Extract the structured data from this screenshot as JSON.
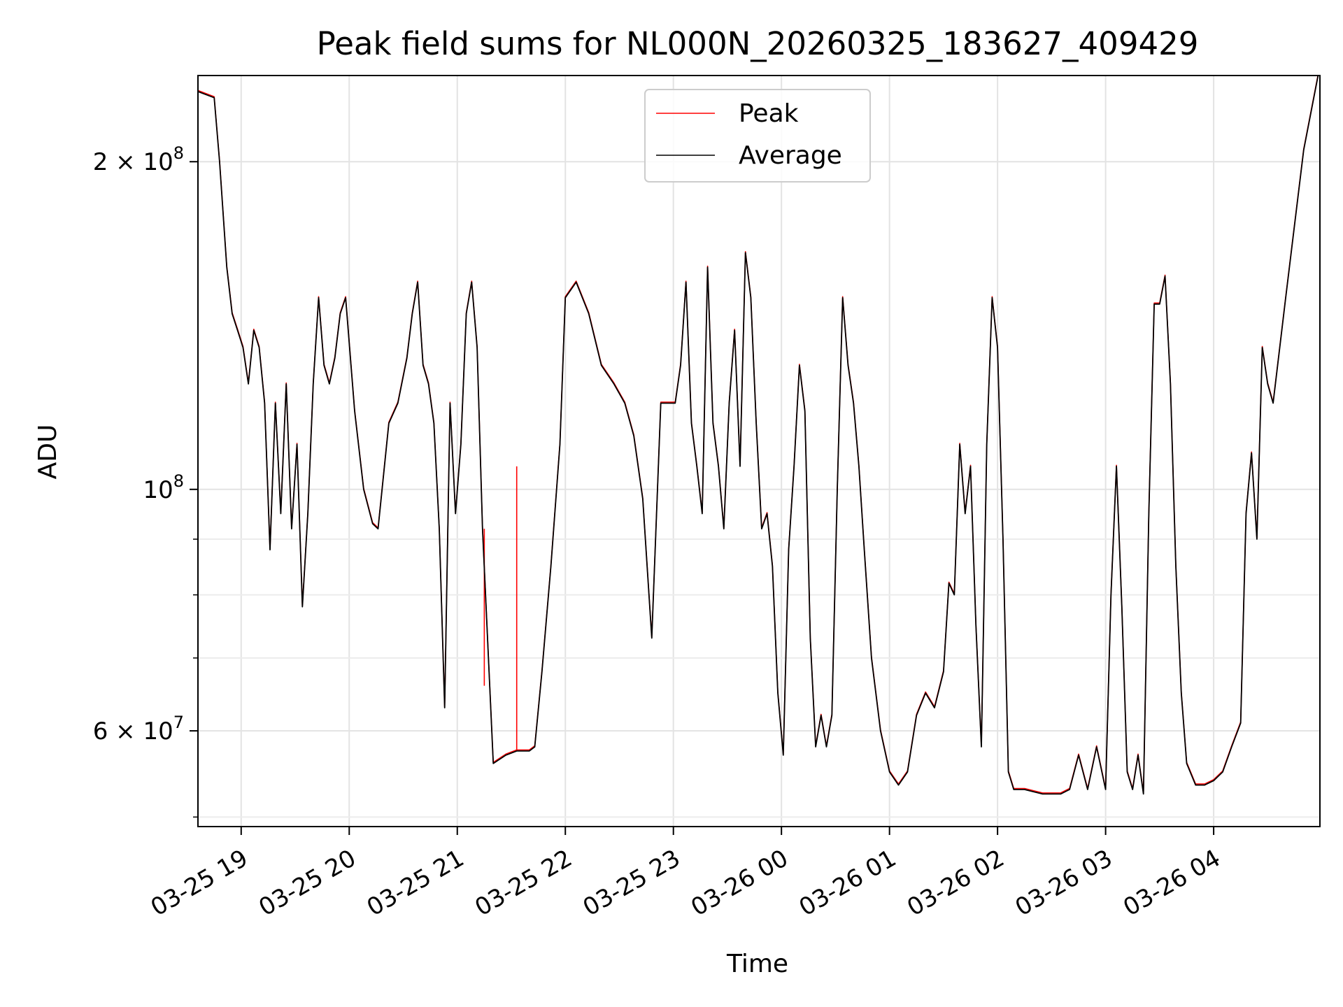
{
  "chart_data": {
    "type": "line",
    "title": "Peak field sums for NL000N_20260325_183627_409429",
    "xlabel": "Time",
    "ylabel": "ADU",
    "y_scale": "log",
    "ylim": [
      49000000,
      240000000
    ],
    "xlim": [
      "2026-03-25 18:36",
      "2026-03-26 04:59"
    ],
    "grid": true,
    "legend": {
      "placement": "top-center"
    },
    "x_ticks": [
      {
        "time": "2026-03-25 19:00",
        "label": "03-25 19"
      },
      {
        "time": "2026-03-25 20:00",
        "label": "03-25 20"
      },
      {
        "time": "2026-03-25 21:00",
        "label": "03-25 21"
      },
      {
        "time": "2026-03-25 22:00",
        "label": "03-25 22"
      },
      {
        "time": "2026-03-25 23:00",
        "label": "03-25 23"
      },
      {
        "time": "2026-03-26 00:00",
        "label": "03-26 00"
      },
      {
        "time": "2026-03-26 01:00",
        "label": "03-26 01"
      },
      {
        "time": "2026-03-26 02:00",
        "label": "03-26 02"
      },
      {
        "time": "2026-03-26 03:00",
        "label": "03-26 03"
      },
      {
        "time": "2026-03-26 04:00",
        "label": "03-26 04"
      }
    ],
    "y_major_ticks": [
      {
        "value": 60000000,
        "mantissa": "6",
        "exp": "7"
      },
      {
        "value": 100000000,
        "mantissa": "",
        "exp": "8"
      },
      {
        "value": 200000000,
        "mantissa": "2",
        "exp": "8"
      }
    ],
    "y_minor_ticks": [
      50000000,
      70000000,
      80000000,
      90000000,
      300000000
    ],
    "series": [
      {
        "name": "Peak",
        "color": "#ff0000",
        "spikes": [
          [
            "2026-03-25 21:15",
            66000000
          ],
          [
            "2026-03-25 21:33",
            105000000
          ],
          [
            "2026-03-26 02:22",
            52500000
          ]
        ]
      },
      {
        "name": "Average",
        "color": "#000000"
      }
    ],
    "x": [
      "2026-03-25 18:36",
      "2026-03-25 18:45",
      "2026-03-25 18:48",
      "2026-03-25 18:52",
      "2026-03-25 18:55",
      "2026-03-25 18:58",
      "2026-03-25 19:01",
      "2026-03-25 19:04",
      "2026-03-25 19:07",
      "2026-03-25 19:10",
      "2026-03-25 19:13",
      "2026-03-25 19:16",
      "2026-03-25 19:19",
      "2026-03-25 19:22",
      "2026-03-25 19:25",
      "2026-03-25 19:28",
      "2026-03-25 19:31",
      "2026-03-25 19:34",
      "2026-03-25 19:37",
      "2026-03-25 19:40",
      "2026-03-25 19:43",
      "2026-03-25 19:46",
      "2026-03-25 19:49",
      "2026-03-25 19:52",
      "2026-03-25 19:55",
      "2026-03-25 19:58",
      "2026-03-25 20:03",
      "2026-03-25 20:08",
      "2026-03-25 20:13",
      "2026-03-25 20:16",
      "2026-03-25 20:22",
      "2026-03-25 20:27",
      "2026-03-25 20:32",
      "2026-03-25 20:35",
      "2026-03-25 20:38",
      "2026-03-25 20:41",
      "2026-03-25 20:44",
      "2026-03-25 20:47",
      "2026-03-25 20:50",
      "2026-03-25 20:53",
      "2026-03-25 20:56",
      "2026-03-25 20:59",
      "2026-03-25 21:02",
      "2026-03-25 21:05",
      "2026-03-25 21:08",
      "2026-03-25 21:11",
      "2026-03-25 21:14",
      "2026-03-25 21:20",
      "2026-03-25 21:27",
      "2026-03-25 21:33",
      "2026-03-25 21:40",
      "2026-03-25 21:43",
      "2026-03-25 21:47",
      "2026-03-25 21:52",
      "2026-03-25 21:57",
      "2026-03-25 22:00",
      "2026-03-25 22:06",
      "2026-03-25 22:13",
      "2026-03-25 22:20",
      "2026-03-25 22:27",
      "2026-03-25 22:33",
      "2026-03-25 22:38",
      "2026-03-25 22:43",
      "2026-03-25 22:48",
      "2026-03-25 22:53",
      "2026-03-25 22:58",
      "2026-03-25 23:01",
      "2026-03-25 23:04",
      "2026-03-25 23:07",
      "2026-03-25 23:10",
      "2026-03-25 23:13",
      "2026-03-25 23:16",
      "2026-03-25 23:19",
      "2026-03-25 23:22",
      "2026-03-25 23:25",
      "2026-03-25 23:28",
      "2026-03-25 23:31",
      "2026-03-25 23:34",
      "2026-03-25 23:37",
      "2026-03-25 23:40",
      "2026-03-25 23:43",
      "2026-03-25 23:46",
      "2026-03-25 23:49",
      "2026-03-25 23:52",
      "2026-03-25 23:55",
      "2026-03-25 23:58",
      "2026-03-26 00:01",
      "2026-03-26 00:04",
      "2026-03-26 00:07",
      "2026-03-26 00:10",
      "2026-03-26 00:13",
      "2026-03-26 00:16",
      "2026-03-26 00:19",
      "2026-03-26 00:22",
      "2026-03-26 00:25",
      "2026-03-26 00:28",
      "2026-03-26 00:31",
      "2026-03-26 00:34",
      "2026-03-26 00:37",
      "2026-03-26 00:40",
      "2026-03-26 00:43",
      "2026-03-26 00:46",
      "2026-03-26 00:50",
      "2026-03-26 00:55",
      "2026-03-26 01:00",
      "2026-03-26 01:05",
      "2026-03-26 01:10",
      "2026-03-26 01:15",
      "2026-03-26 01:20",
      "2026-03-26 01:25",
      "2026-03-26 01:30",
      "2026-03-26 01:33",
      "2026-03-26 01:36",
      "2026-03-26 01:39",
      "2026-03-26 01:42",
      "2026-03-26 01:45",
      "2026-03-26 01:48",
      "2026-03-26 01:51",
      "2026-03-26 01:54",
      "2026-03-26 01:57",
      "2026-03-26 02:00",
      "2026-03-26 02:03",
      "2026-03-26 02:06",
      "2026-03-26 02:09",
      "2026-03-26 02:15",
      "2026-03-26 02:25",
      "2026-03-26 02:35",
      "2026-03-26 02:40",
      "2026-03-26 02:45",
      "2026-03-26 02:50",
      "2026-03-26 02:55",
      "2026-03-26 03:00",
      "2026-03-26 03:03",
      "2026-03-26 03:06",
      "2026-03-26 03:09",
      "2026-03-26 03:12",
      "2026-03-26 03:15",
      "2026-03-26 03:18",
      "2026-03-26 03:21",
      "2026-03-26 03:24",
      "2026-03-26 03:27",
      "2026-03-26 03:30",
      "2026-03-26 03:33",
      "2026-03-26 03:36",
      "2026-03-26 03:39",
      "2026-03-26 03:42",
      "2026-03-26 03:45",
      "2026-03-26 03:50",
      "2026-03-26 03:55",
      "2026-03-26 04:00",
      "2026-03-26 04:05",
      "2026-03-26 04:10",
      "2026-03-26 04:15",
      "2026-03-26 04:18",
      "2026-03-26 04:21",
      "2026-03-26 04:24",
      "2026-03-26 04:27",
      "2026-03-26 04:30",
      "2026-03-26 04:33",
      "2026-03-26 04:40",
      "2026-03-26 04:50",
      "2026-03-26 04:58"
    ],
    "average": [
      232000000,
      229000000,
      200000000,
      160000000,
      145000000,
      140000000,
      135000000,
      125000000,
      140000000,
      135000000,
      120000000,
      88000000,
      120000000,
      95000000,
      125000000,
      92000000,
      110000000,
      78000000,
      95000000,
      125000000,
      150000000,
      130000000,
      125000000,
      132000000,
      145000000,
      150000000,
      118000000,
      100000000,
      93000000,
      92000000,
      115000000,
      120000000,
      132000000,
      145000000,
      155000000,
      130000000,
      125000000,
      115000000,
      92000000,
      63000000,
      120000000,
      95000000,
      110000000,
      145000000,
      155000000,
      135000000,
      92000000,
      56000000,
      57000000,
      57500000,
      57500000,
      58000000,
      68000000,
      85000000,
      110000000,
      150000000,
      155000000,
      145000000,
      130000000,
      125000000,
      120000000,
      112000000,
      98000000,
      73000000,
      120000000,
      120000000,
      120000000,
      130000000,
      155000000,
      115000000,
      105000000,
      95000000,
      160000000,
      115000000,
      105000000,
      92000000,
      120000000,
      140000000,
      105000000,
      165000000,
      150000000,
      115000000,
      92000000,
      95000000,
      85000000,
      65000000,
      57000000,
      88000000,
      105000000,
      130000000,
      118000000,
      73000000,
      58000000,
      62000000,
      58000000,
      62000000,
      100000000,
      150000000,
      130000000,
      120000000,
      105000000,
      88000000,
      70000000,
      60000000,
      55000000,
      53500000,
      55000000,
      62000000,
      65000000,
      63000000,
      68000000,
      82000000,
      80000000,
      110000000,
      95000000,
      105000000,
      75000000,
      58000000,
      110000000,
      150000000,
      135000000,
      90000000,
      55000000,
      53000000,
      53000000,
      52500000,
      52500000,
      53000000,
      57000000,
      53000000,
      58000000,
      53000000,
      80000000,
      105000000,
      78000000,
      55000000,
      53000000,
      57000000,
      52500000,
      95000000,
      148000000,
      148000000,
      157000000,
      125000000,
      85000000,
      65000000,
      56000000,
      53500000,
      53500000,
      54000000,
      55000000,
      58000000,
      61000000,
      95000000,
      108000000,
      90000000,
      135000000,
      125000000,
      120000000,
      150000000,
      205000000,
      240000000
    ]
  },
  "legend_labels": {
    "peak": "Peak",
    "average": "Average"
  }
}
